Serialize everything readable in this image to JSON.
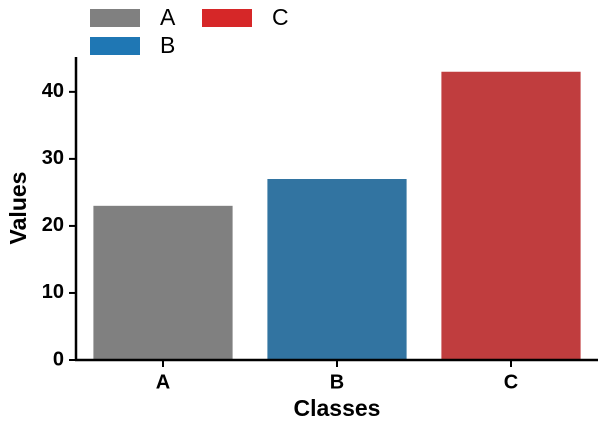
{
  "chart_data": {
    "type": "bar",
    "x_label": "Classes",
    "y_label": "Values",
    "categories": [
      "A",
      "B",
      "C"
    ],
    "values": [
      23,
      27,
      43
    ],
    "colors": [
      "#808080",
      "#3274a1",
      "#c03d3e"
    ],
    "ylim": [
      0,
      45.2
    ],
    "yticks": [
      0,
      10,
      20,
      30,
      40
    ],
    "legend": {
      "loc": "upper left",
      "entries": [
        {
          "name": "A",
          "color": "#808080"
        },
        {
          "name": "B",
          "color": "#1f77b4"
        },
        {
          "name": "C",
          "color": "#d62728"
        }
      ]
    }
  }
}
